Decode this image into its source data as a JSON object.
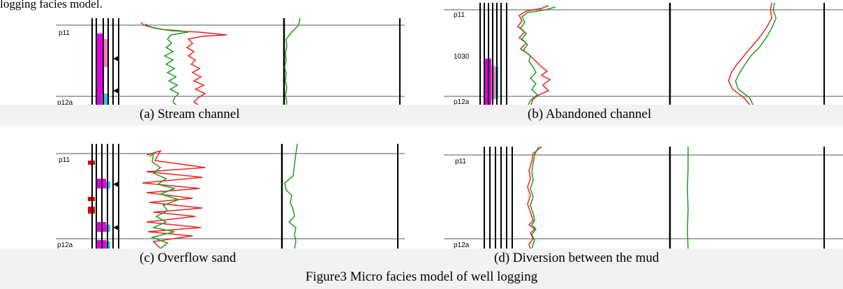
{
  "lead_text": "logging facies model.",
  "figure_caption": "Figure3 Micro facies model of well logging",
  "panels": {
    "a": {
      "caption": "(a) Stream channel",
      "top_marker": "p11",
      "bottom_marker": "p12a"
    },
    "b": {
      "caption": "(b) Abandoned channel",
      "top_marker": "p11",
      "bottom_marker": "p12a",
      "depth_label": "1030"
    },
    "c": {
      "caption": "(c) Overflow sand",
      "top_marker": "p11",
      "bottom_marker": "p12a"
    },
    "d": {
      "caption": "(d) Diversion between the mud",
      "top_marker": "p11",
      "bottom_marker": "p12a"
    }
  },
  "colors": {
    "curve_red": "#ee2222",
    "curve_green": "#1f9a1f",
    "lithology_magenta": "#e000e0",
    "lithology_pink": "#f080c0",
    "lithology_cyan": "#40c0e0",
    "caption_band": "#f2f2f2"
  }
}
